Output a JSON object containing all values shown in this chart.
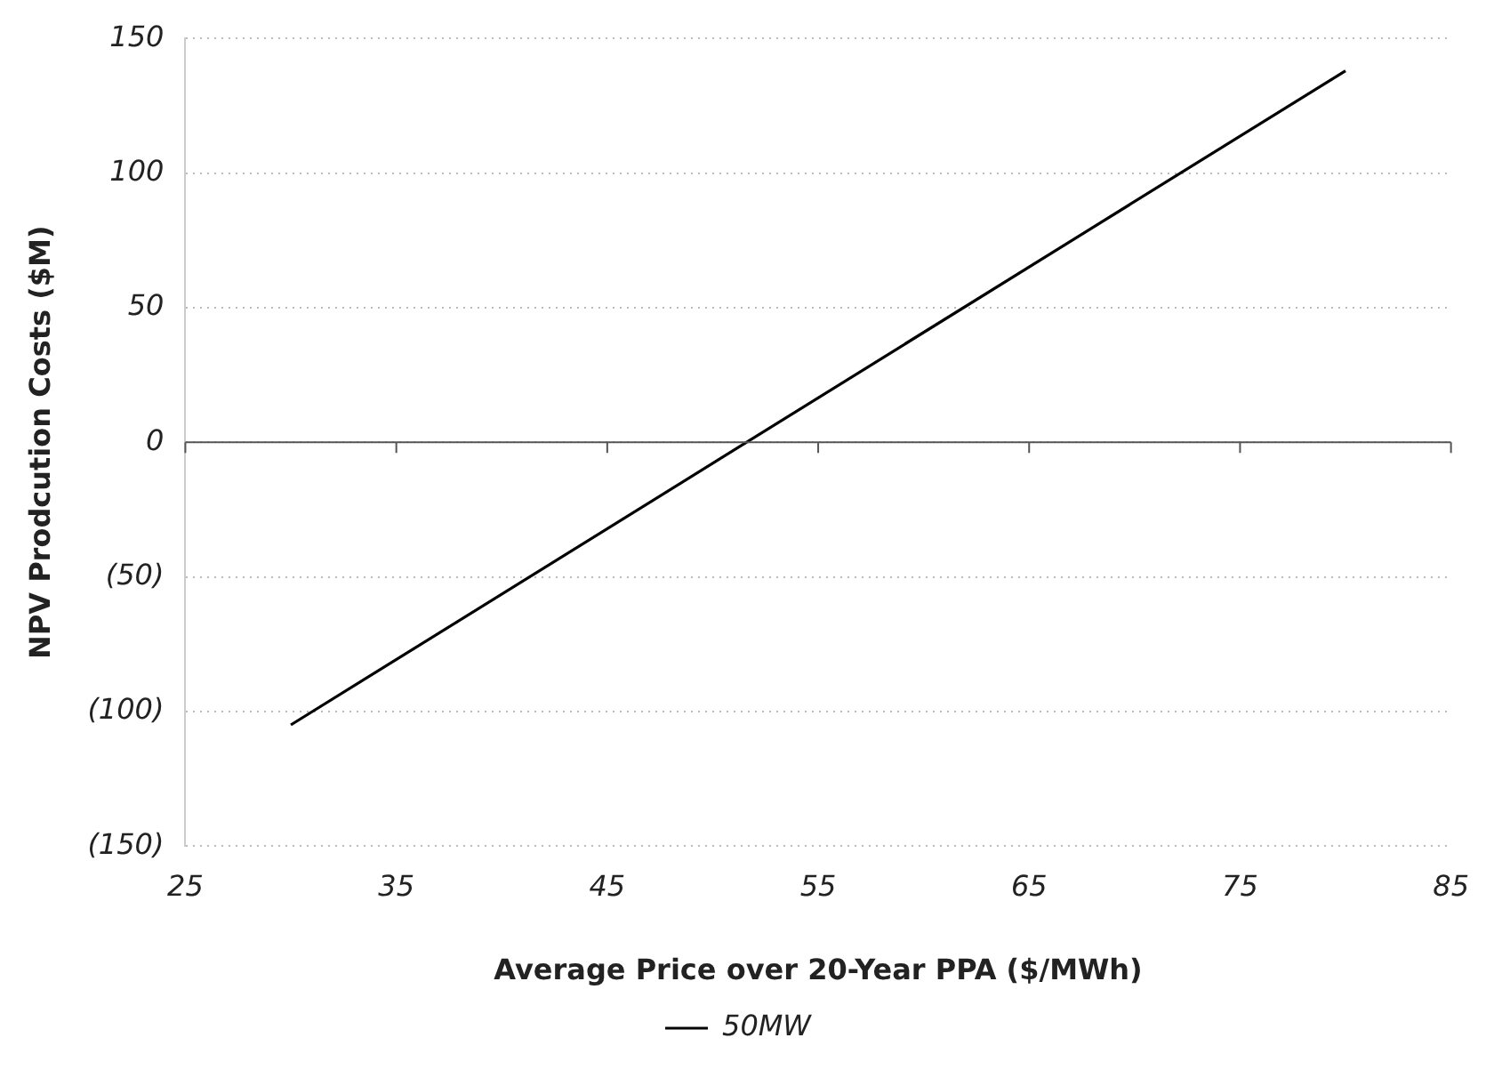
{
  "chart_data": {
    "type": "line",
    "xlabel": "Average Price over 20-Year PPA ($/MWh)",
    "ylabel": "NPV Prodcution Costs ($M)",
    "series": [
      {
        "name": "50MW",
        "color": "#000000",
        "x": [
          30,
          80
        ],
        "values": [
          -105,
          138
        ]
      }
    ],
    "xlim": [
      25,
      85
    ],
    "xticks": [
      25,
      35,
      45,
      55,
      65,
      75,
      85
    ],
    "ylim": [
      -150,
      150
    ],
    "yticks": [
      {
        "value": -150,
        "label": "(150)"
      },
      {
        "value": -100,
        "label": "(100)"
      },
      {
        "value": -50,
        "label": "(50)"
      },
      0,
      50,
      100,
      150
    ],
    "grid": "y",
    "legend": "bottom",
    "marker": "none",
    "line_style": "solid"
  }
}
